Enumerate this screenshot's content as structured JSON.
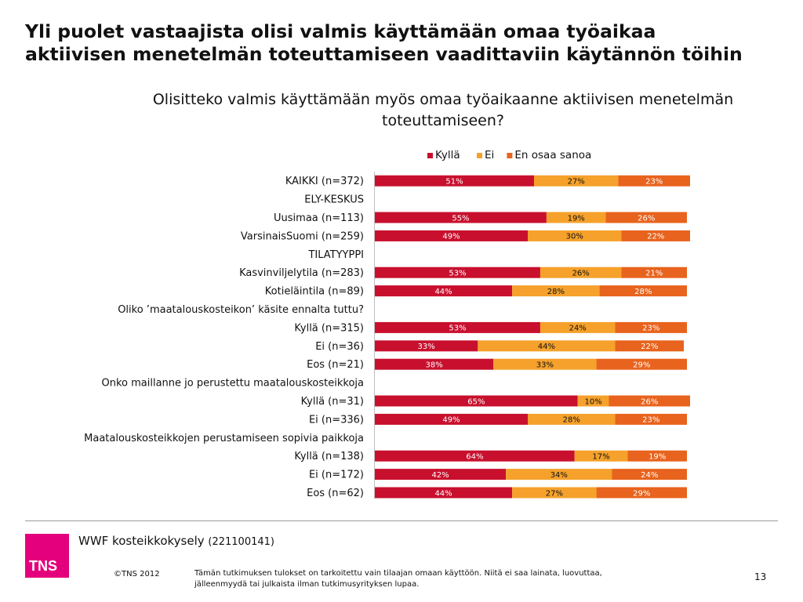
{
  "title": "Yli puolet vastaajista olisi valmis käyttämään omaa työaikaa aktiivisen menetelmän toteuttamiseen vaadittaviin käytännön töihin",
  "colors": {
    "Kyllä": "#c8102e",
    "Ei": "#f5a12b",
    "En osaa sanoa": "#e8631d",
    "background": "#ffffff"
  },
  "chart_data": {
    "type": "bar",
    "orientation": "horizontal",
    "stacked": true,
    "percent_stacked": true,
    "title": "Olisitteko valmis käyttämään myös omaa työaikaanne aktiivisen menetelmän toteuttamiseen?",
    "legend": {
      "position": "top",
      "entries": [
        "Kyllä",
        "Ei",
        "En osaa sanoa"
      ]
    },
    "grid": false,
    "categories": [
      "KAIKKI (n=372)",
      "ELY-KESKUS",
      "Uusimaa (n=113)",
      "VarsinaisSuomi (n=259)",
      "TILATYYPPI",
      "Kasvinviljelytila (n=283)",
      "Kotieläintila (n=89)",
      "Oliko ’maatalouskosteikon’ käsite ennalta tuttu?",
      "Kyllä (n=315)",
      "Ei (n=36)",
      "Eos (n=21)",
      "Onko maillanne jo perustettu maatalouskosteikkoja",
      "Kyllä (n=31)",
      "Ei (n=336)",
      "Maatalouskosteikkojen perustamiseen sopivia paikkoja",
      "Kyllä (n=138)",
      "Ei (n=172)",
      "Eos (n=62)"
    ],
    "series": [
      {
        "name": "Kyllä",
        "values": [
          51,
          null,
          55,
          49,
          null,
          53,
          44,
          null,
          53,
          33,
          38,
          null,
          65,
          49,
          null,
          64,
          42,
          44
        ]
      },
      {
        "name": "Ei",
        "values": [
          27,
          null,
          19,
          30,
          null,
          26,
          28,
          null,
          24,
          44,
          33,
          null,
          10,
          28,
          null,
          17,
          34,
          27
        ]
      },
      {
        "name": "En osaa sanoa",
        "values": [
          23,
          null,
          26,
          22,
          null,
          21,
          28,
          null,
          23,
          22,
          29,
          null,
          26,
          23,
          null,
          19,
          24,
          29
        ]
      }
    ]
  },
  "footer": {
    "survey_name": "WWF kosteikkokysely",
    "survey_code": "(221100141)",
    "logo_text": "TNS",
    "copyright": "©TNS 2012",
    "disclaimer": "Tämän tutkimuksen tulokset on tarkoitettu vain tilaajan omaan käyttöön. Niitä ei saa  lainata, luovuttaa, jälleenmyydä tai julkaista ilman tutkimusyrityksen lupaa.",
    "page_number": "13"
  }
}
